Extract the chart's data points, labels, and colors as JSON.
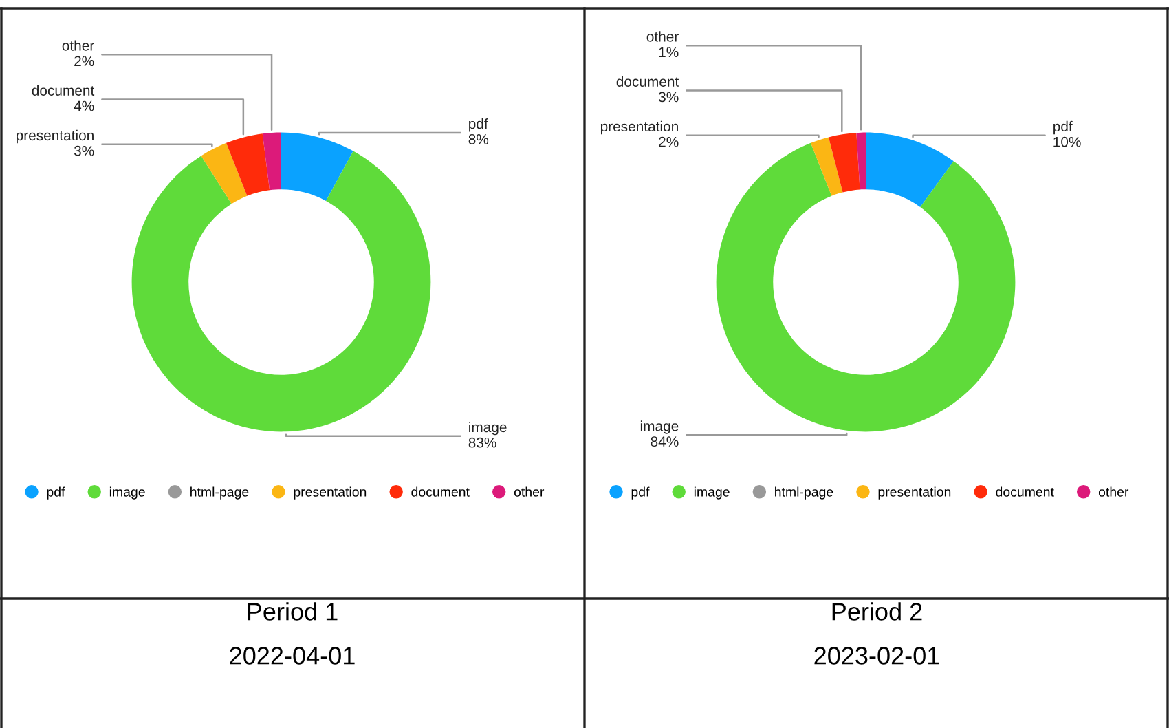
{
  "chart_data": [
    {
      "type": "donut",
      "categories": [
        "pdf",
        "image",
        "html-page",
        "presentation",
        "document",
        "other"
      ],
      "values": [
        8,
        83,
        0,
        3,
        4,
        2
      ],
      "colors": [
        "#0aa2ff",
        "#5fdb3a",
        "#999999",
        "#fbb614",
        "#ff2b0a",
        "#dc1a7a"
      ],
      "value_labels": [
        "8%",
        "83%",
        null,
        "3%",
        "4%",
        "2%"
      ],
      "legend": "bottom",
      "annotations": [
        "Period 1",
        "2022-04-01"
      ]
    },
    {
      "type": "donut",
      "categories": [
        "pdf",
        "image",
        "html-page",
        "presentation",
        "document",
        "other"
      ],
      "values": [
        10,
        84,
        0,
        2,
        3,
        1
      ],
      "colors": [
        "#0aa2ff",
        "#5fdb3a",
        "#999999",
        "#fbb614",
        "#ff2b0a",
        "#dc1a7a"
      ],
      "value_labels": [
        "10%",
        "84%",
        null,
        "2%",
        "3%",
        "1%"
      ],
      "legend": "bottom",
      "annotations": [
        "Period 2",
        "2023-02-01"
      ]
    }
  ]
}
